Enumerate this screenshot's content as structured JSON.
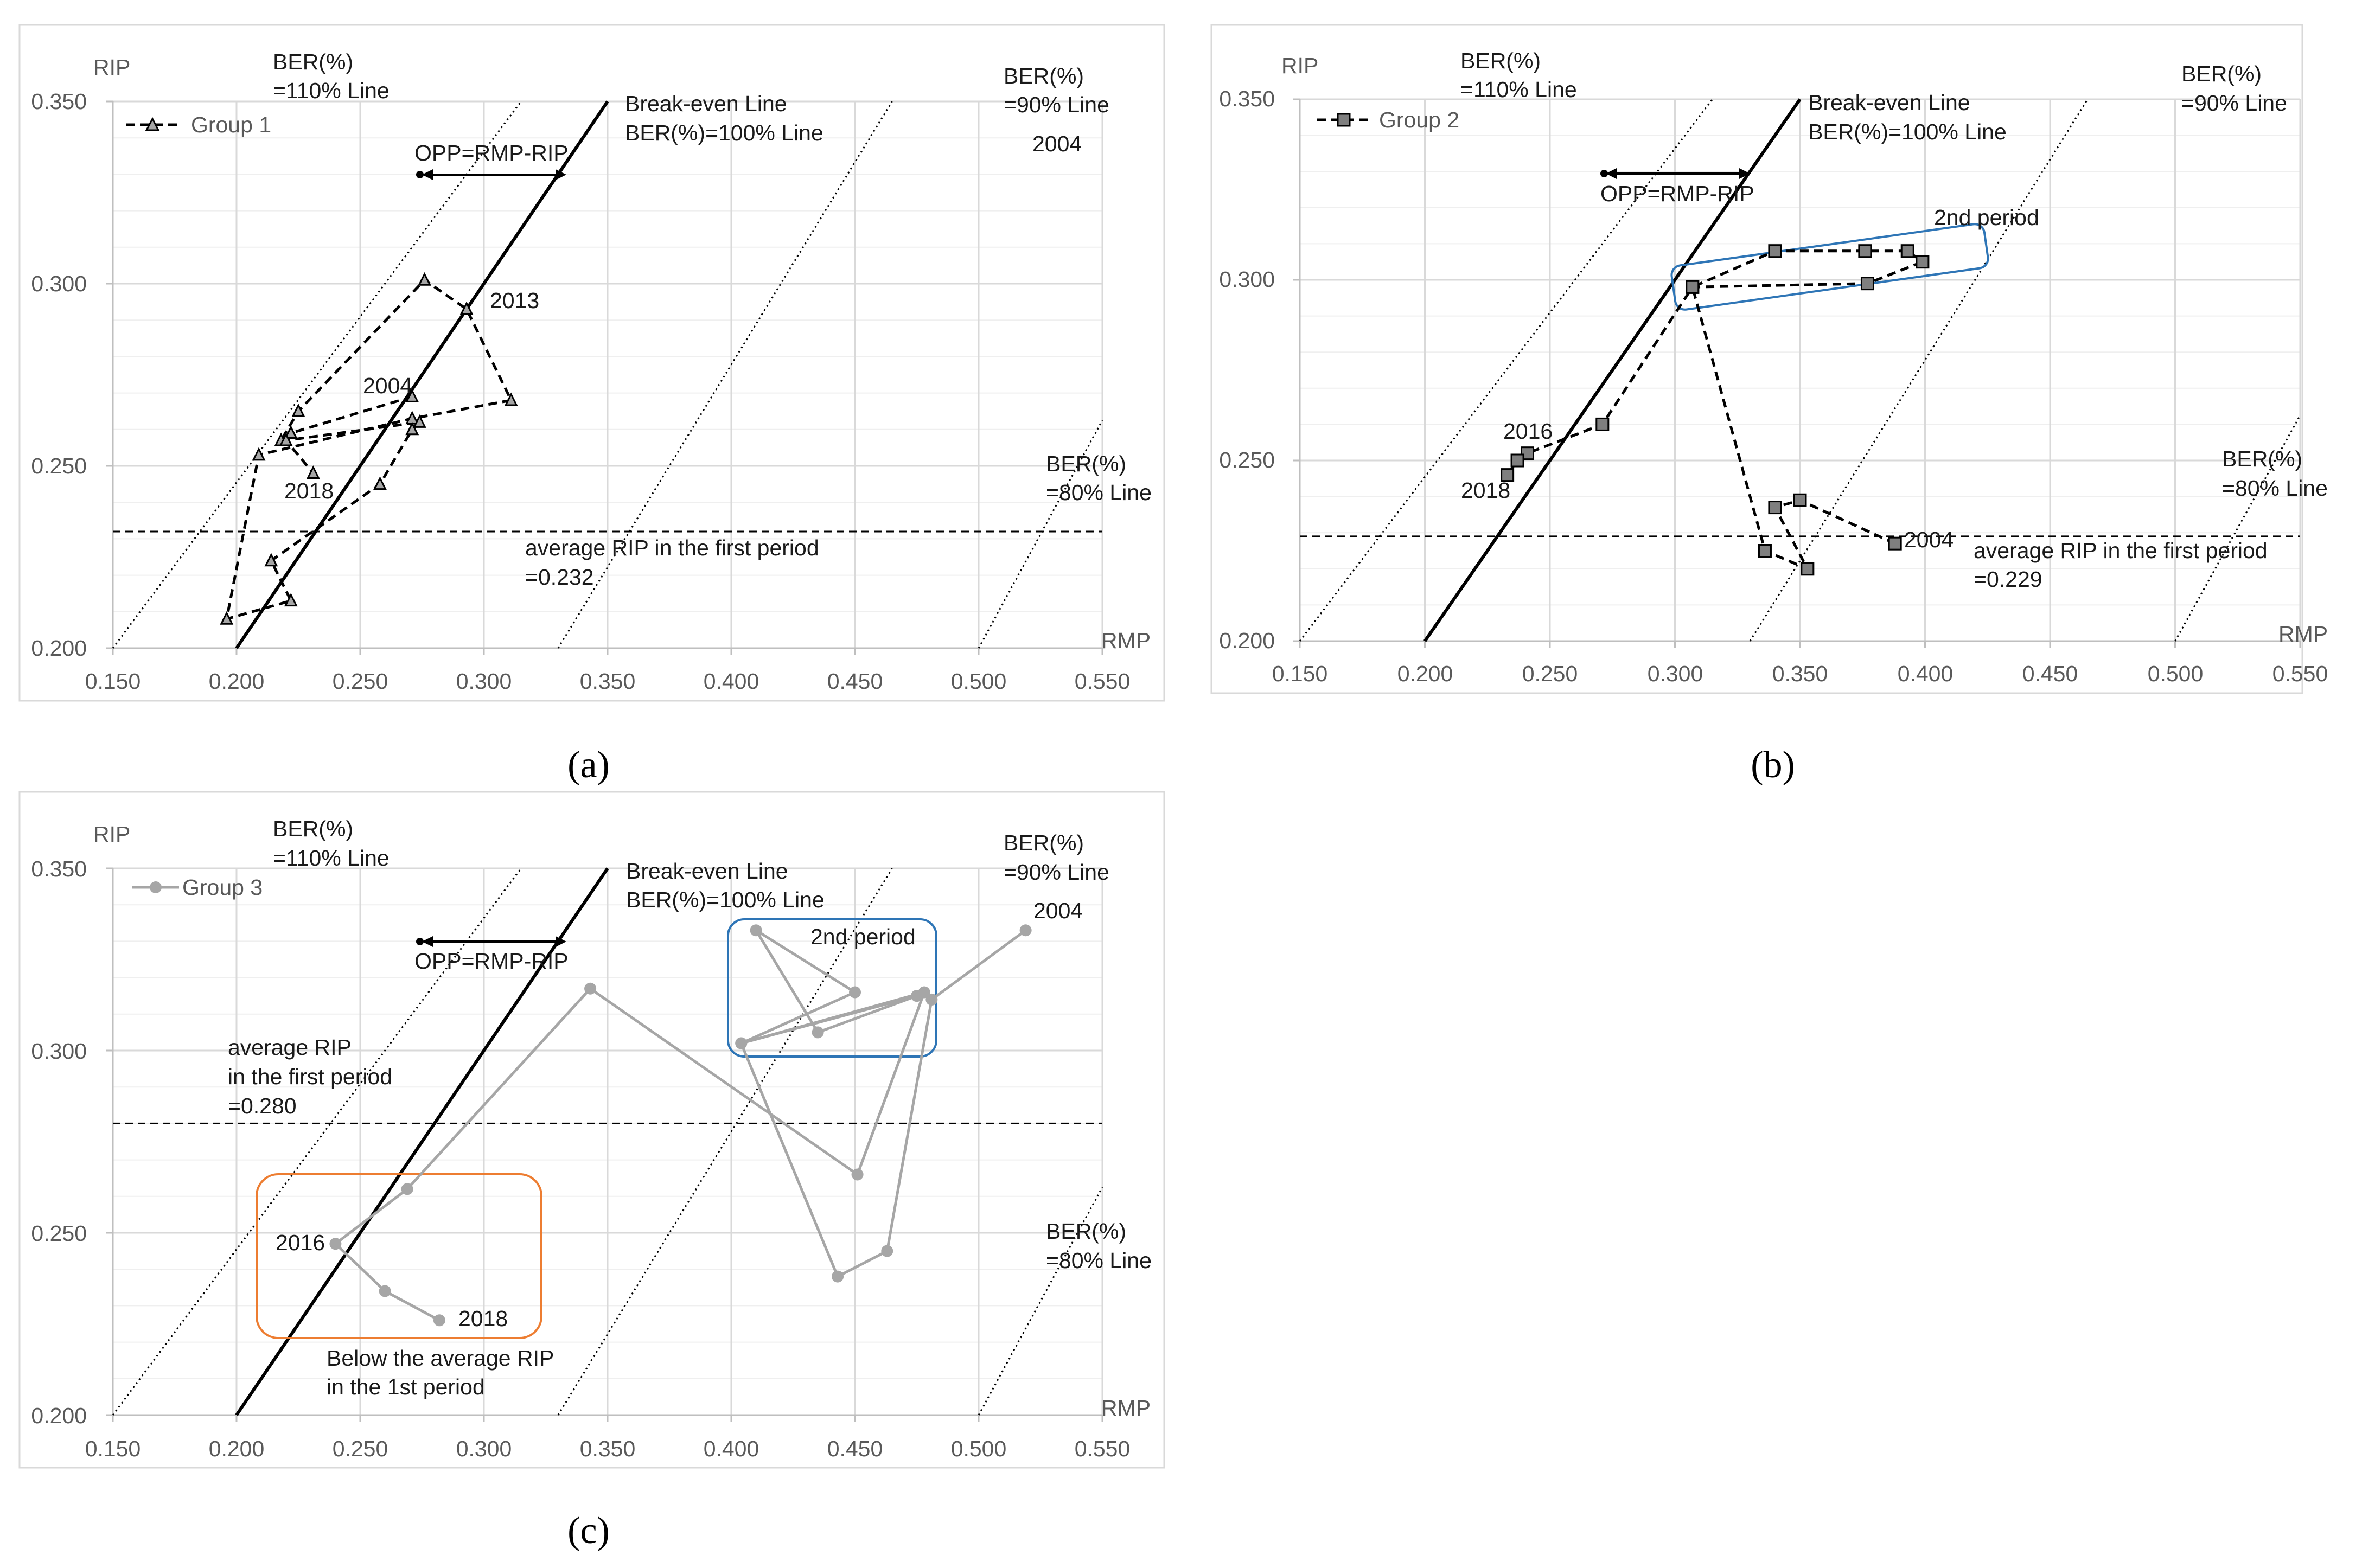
{
  "chart_data": [
    {
      "type": "line",
      "panel_label": "(a)",
      "x_label": "RMP",
      "y_label": "RIP",
      "xlim": [
        0.15,
        0.55
      ],
      "ylim": [
        0.2,
        0.35
      ],
      "x_ticks": [
        "0.150",
        "0.200",
        "0.250",
        "0.300",
        "0.350",
        "0.400",
        "0.450",
        "0.500",
        "0.550"
      ],
      "y_ticks": [
        "0.200",
        "0.250",
        "0.300",
        "0.350"
      ],
      "grid": true,
      "legend": "Group 1",
      "marker": "triangle",
      "line_color": "#000000",
      "marker_color": "#a6a6a6",
      "series": [
        {
          "name": "Group 1",
          "points": [
            [
              0.271,
              0.269
            ],
            [
              0.222,
              0.259
            ],
            [
              0.218,
              0.257
            ],
            [
              0.225,
              0.265
            ],
            [
              0.276,
              0.301
            ],
            [
              0.293,
              0.293
            ],
            [
              0.311,
              0.268
            ],
            [
              0.271,
              0.263
            ],
            [
              0.209,
              0.253
            ],
            [
              0.196,
              0.208
            ],
            [
              0.222,
              0.213
            ],
            [
              0.214,
              0.224
            ],
            [
              0.258,
              0.245
            ],
            [
              0.271,
              0.26
            ],
            [
              0.274,
              0.262
            ],
            [
              0.22,
              0.257
            ],
            [
              0.231,
              0.248
            ]
          ]
        }
      ],
      "average_rip": 0.232,
      "ber_lines": [
        {
          "name": "BER(%) 110%",
          "x0": 0.15,
          "slope": 1.1
        },
        {
          "name": "BER(%) 100%",
          "x0": 0.2,
          "slope": 1.0
        },
        {
          "name": "BER(%) 90%",
          "x0": 0.33,
          "slope": 0.9
        },
        {
          "name": "BER(%) 80%",
          "x0": 0.5,
          "slope": 0.8
        }
      ],
      "annotations": {
        "ber110_a": "BER(%)",
        "ber110_b": "=110% Line",
        "ber90_a": "BER(%)",
        "ber90_b": "=90% Line",
        "ber80_a": "BER(%)",
        "ber80_b": "=80% Line",
        "breakeven_a": "Break-even Line",
        "breakeven_b": "BER(%)=100% Line",
        "opp": "OPP=RMP-RIP",
        "avg_a": "average RIP in the first period",
        "avg_b": "=0.232",
        "year_2004_top": "2004",
        "year_2013": "2013",
        "year_2004": "2004",
        "year_2018": "2018"
      }
    },
    {
      "type": "line",
      "panel_label": "(b)",
      "x_label": "RMP",
      "y_label": "RIP",
      "xlim": [
        0.15,
        0.55
      ],
      "ylim": [
        0.2,
        0.35
      ],
      "x_ticks": [
        "0.150",
        "0.200",
        "0.250",
        "0.300",
        "0.350",
        "0.400",
        "0.450",
        "0.500",
        "0.550"
      ],
      "y_ticks": [
        "0.200",
        "0.250",
        "0.300",
        "0.350"
      ],
      "grid": true,
      "legend": "Group 2",
      "marker": "square",
      "line_color": "#000000",
      "marker_color": "#7f7f7f",
      "series": [
        {
          "name": "Group 2",
          "points": [
            [
              0.388,
              0.227
            ],
            [
              0.35,
              0.239
            ],
            [
              0.34,
              0.237
            ],
            [
              0.353,
              0.22
            ],
            [
              0.336,
              0.225
            ],
            [
              0.307,
              0.298
            ],
            [
              0.34,
              0.308
            ],
            [
              0.376,
              0.308
            ],
            [
              0.393,
              0.308
            ],
            [
              0.399,
              0.305
            ],
            [
              0.377,
              0.299
            ],
            [
              0.307,
              0.298
            ],
            [
              0.271,
              0.26
            ],
            [
              0.241,
              0.252
            ],
            [
              0.237,
              0.25
            ],
            [
              0.233,
              0.246
            ]
          ]
        }
      ],
      "average_rip": 0.229,
      "ber_lines": [
        {
          "name": "BER(%) 110%",
          "x0": 0.15,
          "slope": 1.1
        },
        {
          "name": "BER(%) 100%",
          "x0": 0.2,
          "slope": 1.0
        },
        {
          "name": "BER(%) 90%",
          "x0": 0.33,
          "slope": 0.9
        },
        {
          "name": "BER(%) 80%",
          "x0": 0.5,
          "slope": 0.8
        }
      ],
      "annotations": {
        "ber110_a": "BER(%)",
        "ber110_b": "=110% Line",
        "ber90_a": "BER(%)",
        "ber90_b": "=90% Line",
        "ber80_a": "BER(%)",
        "ber80_b": "=80% Line",
        "breakeven_a": "Break-even Line",
        "breakeven_b": "BER(%)=100% Line",
        "opp": "OPP=RMP-RIP",
        "avg_a": "average RIP in the first period",
        "avg_b": "=0.229",
        "second_period": "2nd period",
        "year_2004": "2004",
        "year_2016": "2016",
        "year_2018": "2018"
      }
    },
    {
      "type": "line",
      "panel_label": "(c)",
      "x_label": "RMP",
      "y_label": "RIP",
      "xlim": [
        0.15,
        0.55
      ],
      "ylim": [
        0.2,
        0.35
      ],
      "x_ticks": [
        "0.150",
        "0.200",
        "0.250",
        "0.300",
        "0.350",
        "0.400",
        "0.450",
        "0.500",
        "0.550"
      ],
      "y_ticks": [
        "0.200",
        "0.250",
        "0.300",
        "0.350"
      ],
      "grid": true,
      "legend": "Group 3",
      "marker": "circle",
      "line_color": "#a6a6a6",
      "marker_color": "#a6a6a6",
      "series": [
        {
          "name": "Group 3",
          "points": [
            [
              0.519,
              0.333
            ],
            [
              0.481,
              0.314
            ],
            [
              0.463,
              0.245
            ],
            [
              0.443,
              0.238
            ],
            [
              0.404,
              0.302
            ],
            [
              0.475,
              0.315
            ],
            [
              0.435,
              0.305
            ],
            [
              0.41,
              0.333
            ],
            [
              0.45,
              0.316
            ],
            [
              0.404,
              0.302
            ],
            [
              0.478,
              0.316
            ],
            [
              0.451,
              0.266
            ],
            [
              0.343,
              0.317
            ],
            [
              0.269,
              0.262
            ],
            [
              0.24,
              0.247
            ],
            [
              0.26,
              0.234
            ],
            [
              0.282,
              0.226
            ]
          ]
        }
      ],
      "average_rip": 0.28,
      "ber_lines": [
        {
          "name": "BER(%) 110%",
          "x0": 0.15,
          "slope": 1.1
        },
        {
          "name": "BER(%) 100%",
          "x0": 0.2,
          "slope": 1.0
        },
        {
          "name": "BER(%) 90%",
          "x0": 0.33,
          "slope": 0.9
        },
        {
          "name": "BER(%) 80%",
          "x0": 0.5,
          "slope": 0.8
        }
      ],
      "annotations": {
        "ber110_a": "BER(%)",
        "ber110_b": "=110% Line",
        "ber90_a": "BER(%)",
        "ber90_b": "=90% Line",
        "ber80_a": "BER(%)",
        "ber80_b": "=80% Line",
        "breakeven_a": "Break-even Line",
        "breakeven_b": "BER(%)=100% Line",
        "opp": "OPP=RMP-RIP",
        "avg_a": "average RIP",
        "avg_b": "in the first period",
        "avg_c": "=0.280",
        "second_period": "2nd period",
        "below_a": "Below the average RIP",
        "below_b": "in the 1st period",
        "year_2004": "2004",
        "year_2016": "2016",
        "year_2018": "2018"
      }
    }
  ]
}
